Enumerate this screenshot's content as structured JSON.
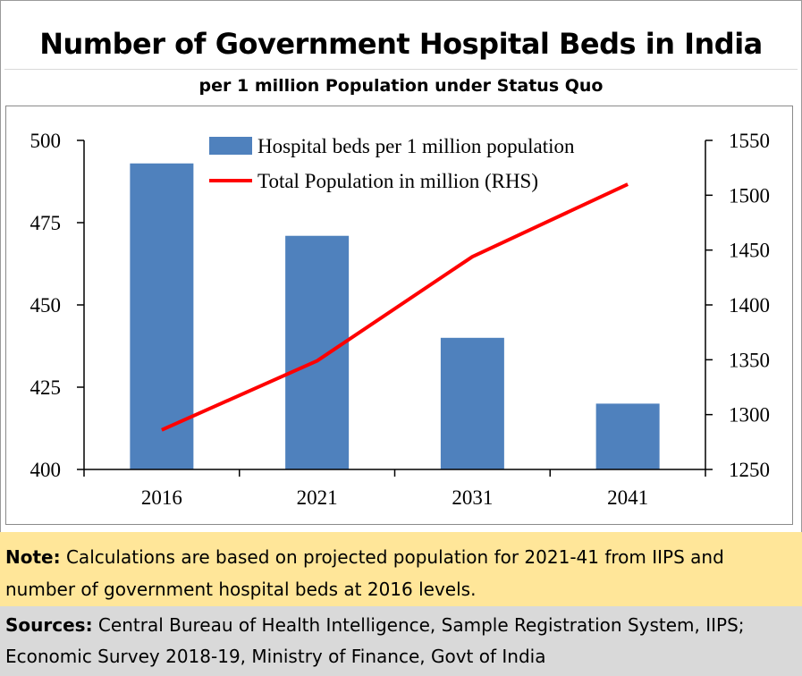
{
  "title": "Number of Government Hospital Beds in India",
  "subtitle": "per 1 million Population under Status Quo",
  "note": {
    "label": "Note:",
    "text": " Calculations are based on projected population for 2021-41 from IIPS and number of government hospital beds at 2016 levels."
  },
  "sources": {
    "label": "Sources:",
    "text": " Central Bureau of Health Intelligence, Sample Registration System, IIPS; Economic Survey 2018-19, Ministry of Finance, Govt of India"
  },
  "colors": {
    "bar": "#4f81bd",
    "line": "#ff0000"
  },
  "chart_data": {
    "type": "bar",
    "categories": [
      "2016",
      "2021",
      "2031",
      "2041"
    ],
    "series": [
      {
        "name": "Hospital beds per 1 million population",
        "type": "bar",
        "axis": "left",
        "values": [
          493,
          471,
          440,
          420
        ]
      },
      {
        "name": "Total Population in million (RHS)",
        "type": "line",
        "axis": "right",
        "values": [
          1286,
          1349,
          1444,
          1510
        ]
      }
    ],
    "ylim": [
      400,
      500
    ],
    "yticks": [
      "400",
      "425",
      "450",
      "475",
      "500"
    ],
    "y2lim": [
      1250,
      1550
    ],
    "y2ticks": [
      "1250",
      "1300",
      "1350",
      "1400",
      "1450",
      "1500",
      "1550"
    ],
    "legend": "top-center",
    "grid": false
  }
}
